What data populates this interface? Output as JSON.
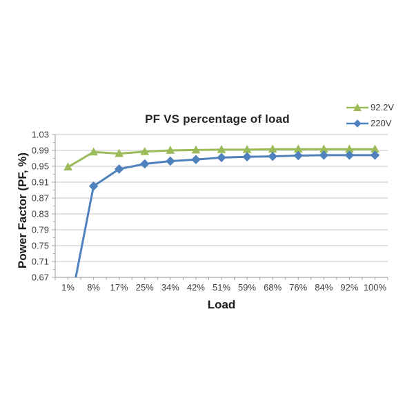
{
  "chart_data": {
    "type": "line",
    "title": "PF VS percentage of load",
    "xlabel": "Load",
    "ylabel": "Power Factor (PF, %)",
    "categories": [
      "1%",
      "8%",
      "17%",
      "25%",
      "34%",
      "42%",
      "51%",
      "59%",
      "68%",
      "76%",
      "84%",
      "92%",
      "100%"
    ],
    "series": [
      {
        "name": "92.2V",
        "color": "#9BBB59",
        "marker": "triangle",
        "values": [
          0.948,
          0.986,
          0.982,
          0.987,
          0.99,
          0.991,
          0.992,
          0.992,
          0.993,
          0.993,
          0.993,
          0.993,
          0.993
        ]
      },
      {
        "name": "220V",
        "color": "#4F81BD",
        "marker": "diamond",
        "values": [
          0.57,
          0.9,
          0.943,
          0.956,
          0.963,
          0.967,
          0.972,
          0.974,
          0.975,
          0.977,
          0.978,
          0.978,
          0.978
        ]
      }
    ],
    "ylim": [
      0.67,
      1.03
    ],
    "ytick_step": 0.04,
    "ytick_labels": [
      "1.03",
      "0.99",
      "0.95",
      "0.91",
      "0.87",
      "0.83",
      "0.79",
      "0.75",
      "0.71",
      "0.67"
    ],
    "grid": true,
    "legend_position": "top-right",
    "colors": {
      "grid": "#C6C6C6",
      "axis": "#A6A6A6",
      "tick_text": "#404040",
      "background": "#FFFFFF"
    }
  }
}
